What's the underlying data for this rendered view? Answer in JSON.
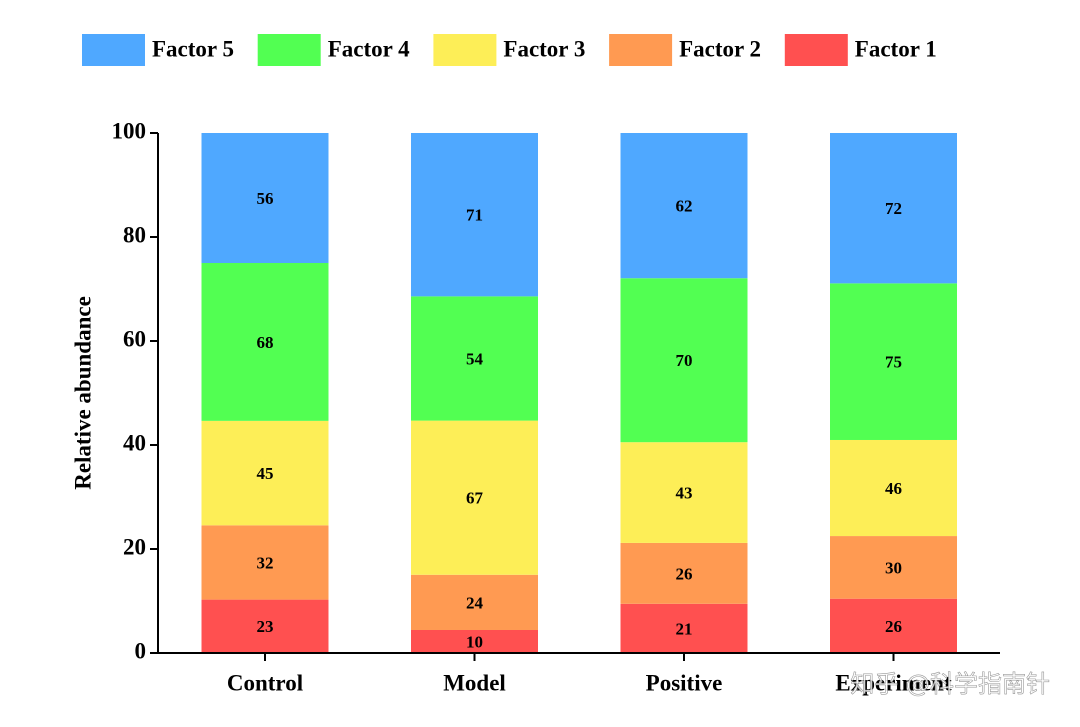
{
  "chart_data": {
    "type": "stacked_bar",
    "stacking": "percent",
    "ylabel": "Relative abundance",
    "categories": [
      "Control",
      "Model",
      "Positive",
      "Experiment"
    ],
    "series": [
      {
        "name": "Factor 1",
        "color": "#ff5050",
        "values": [
          23,
          10,
          21,
          26
        ]
      },
      {
        "name": "Factor 2",
        "color": "#ff9a52",
        "values": [
          32,
          24,
          26,
          30
        ]
      },
      {
        "name": "Factor 3",
        "color": "#fdee57",
        "values": [
          45,
          67,
          43,
          46
        ]
      },
      {
        "name": "Factor 4",
        "color": "#52ff52",
        "values": [
          68,
          54,
          70,
          75
        ]
      },
      {
        "name": "Factor 5",
        "color": "#4fa8ff",
        "values": [
          56,
          71,
          62,
          72
        ]
      }
    ],
    "ylim": [
      0,
      100
    ],
    "yticks": [
      0,
      20,
      40,
      60,
      80,
      100
    ],
    "legend": "top",
    "legend_order": "reversed",
    "watermark": "知乎 @科学指南针"
  }
}
